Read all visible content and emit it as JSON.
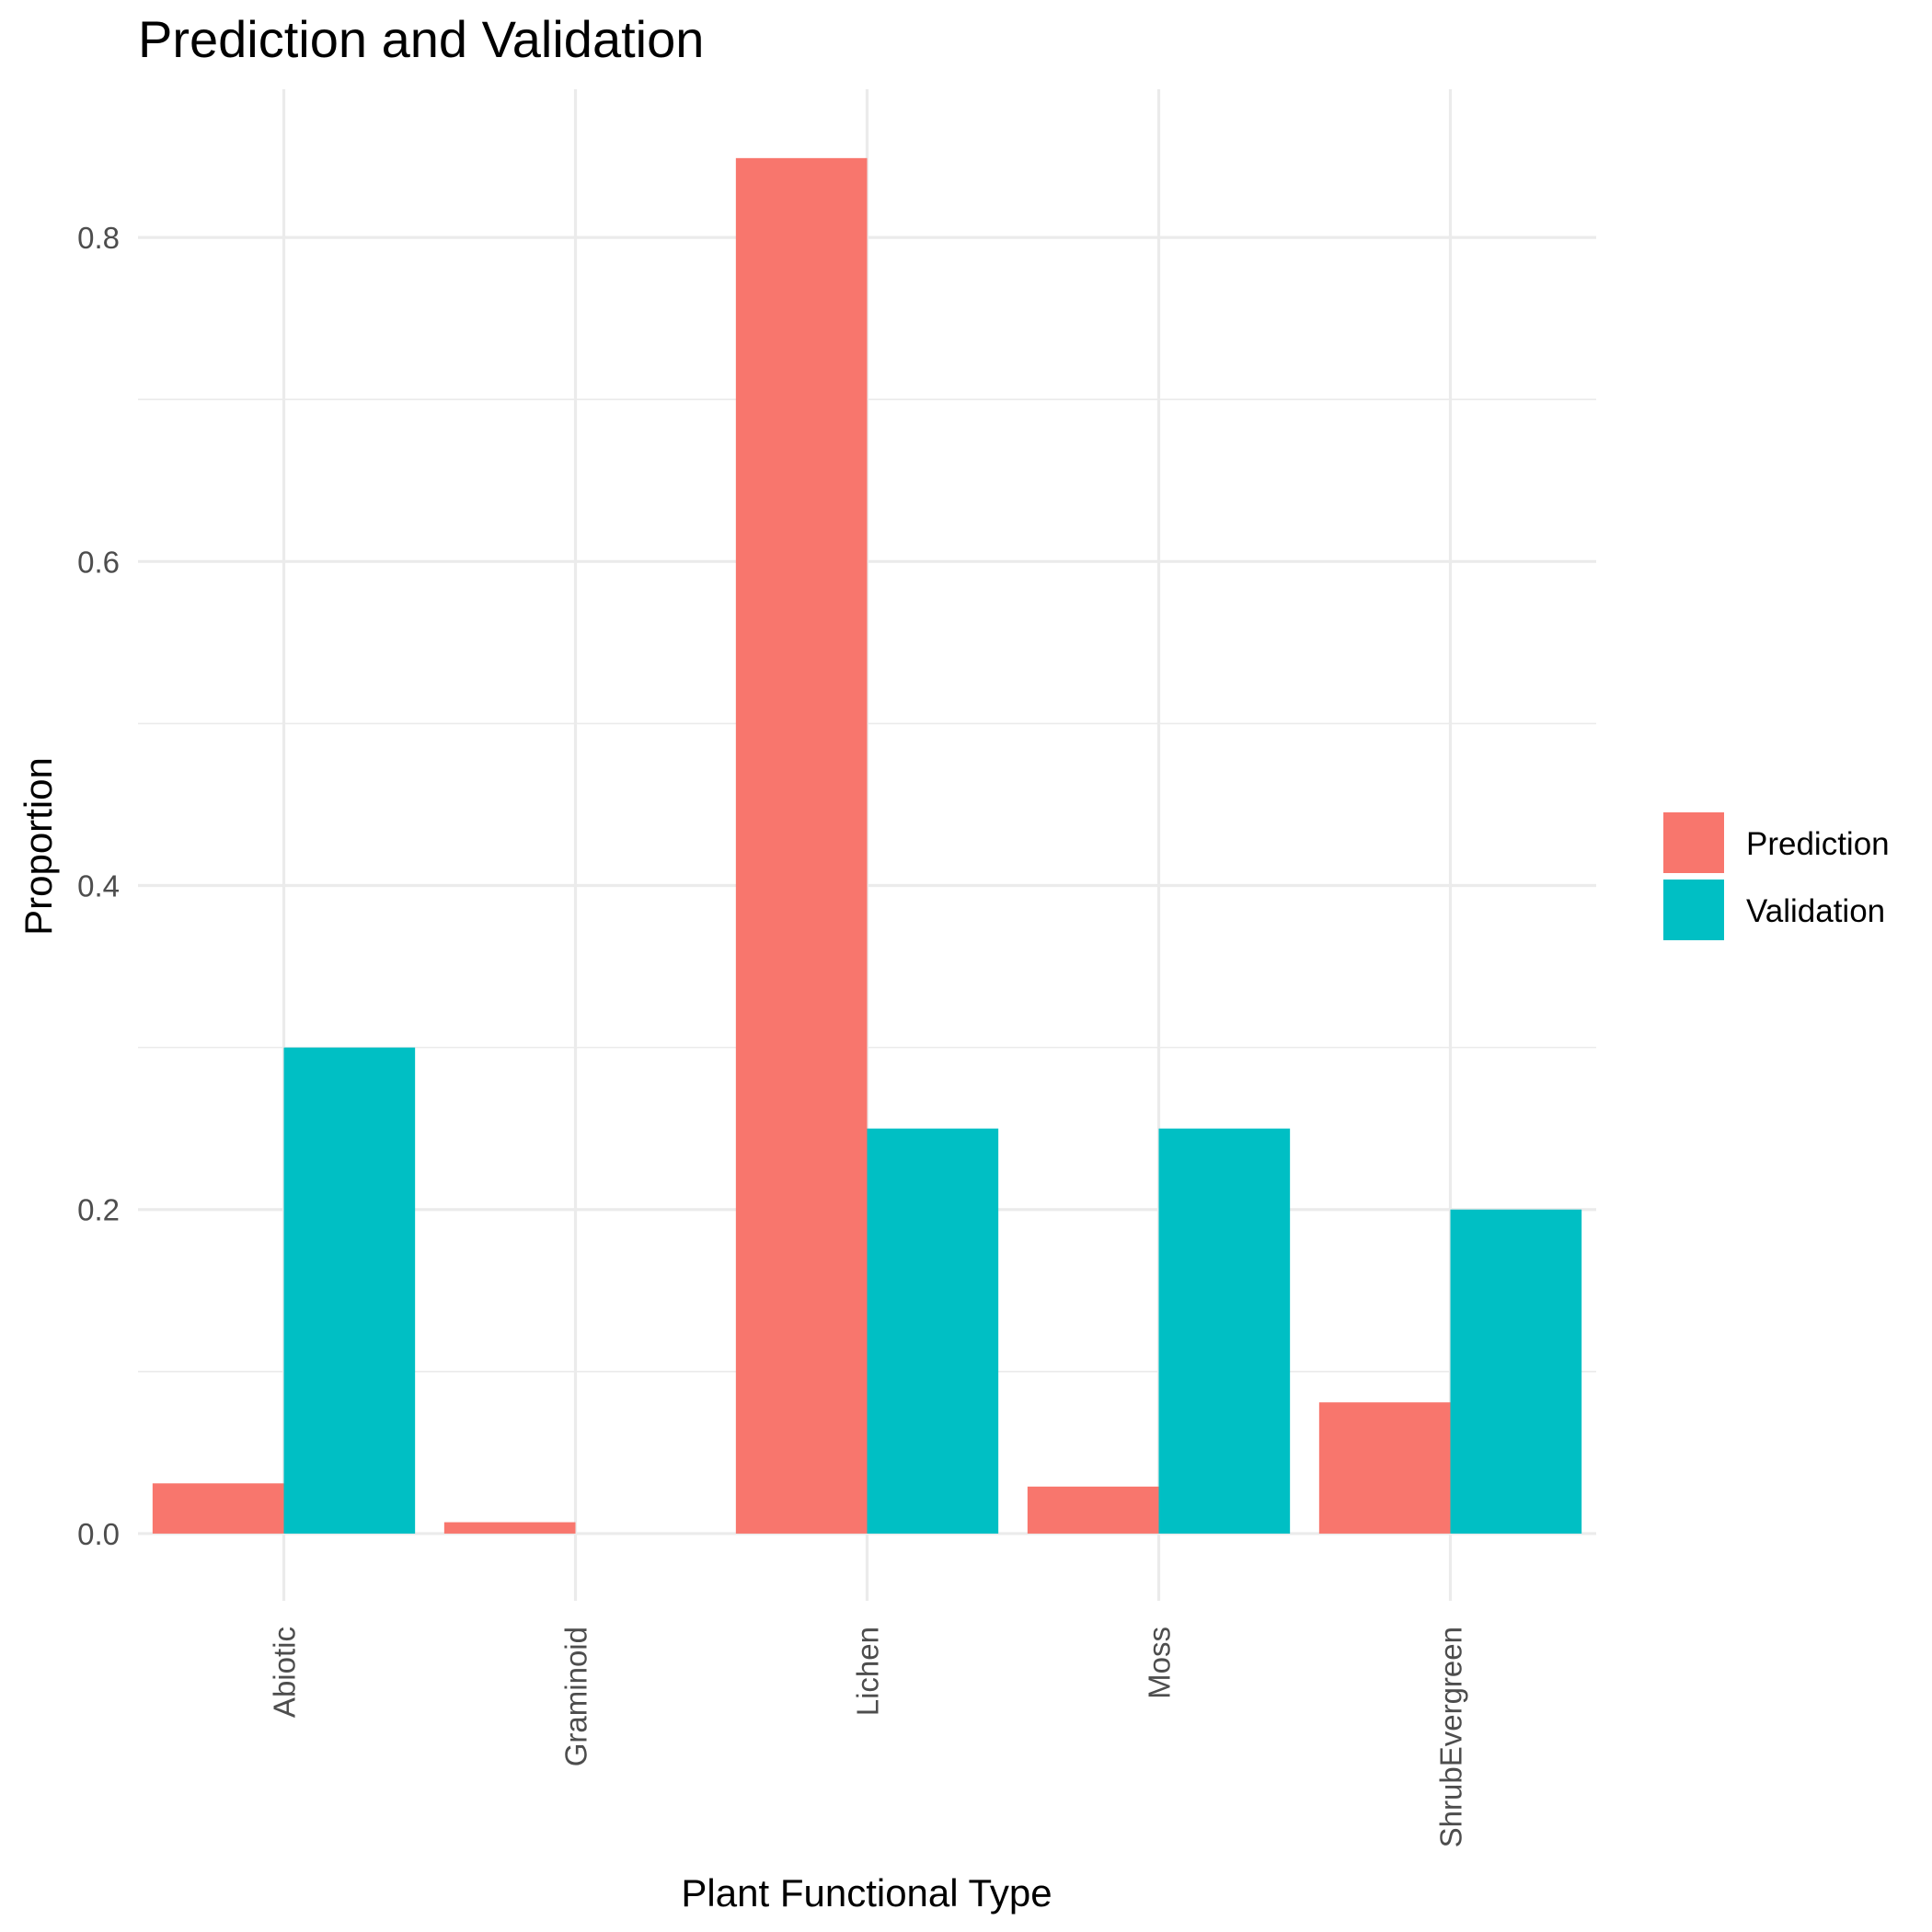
{
  "chart_data": {
    "type": "bar",
    "title": "Prediction and Validation",
    "xlabel": "Plant Functional Type",
    "ylabel": "Proportion",
    "categories": [
      "Abiotic",
      "Graminoid",
      "Lichen",
      "Moss",
      "ShrubEvergreen"
    ],
    "series": [
      {
        "name": "Prediction",
        "color": "#F8766D",
        "values": [
          0.031,
          0.007,
          0.849,
          0.029,
          0.081
        ]
      },
      {
        "name": "Validation",
        "color": "#00BFC4",
        "values": [
          0.3,
          0.0,
          0.25,
          0.25,
          0.2
        ]
      }
    ],
    "yticks": [
      0.0,
      0.2,
      0.4,
      0.6,
      0.8
    ],
    "ytick_labels": [
      "0.0",
      "0.2",
      "0.4",
      "0.6",
      "0.8"
    ],
    "ylim": [
      -0.0415,
      0.8915
    ],
    "grid": true,
    "legend_position": "right"
  }
}
